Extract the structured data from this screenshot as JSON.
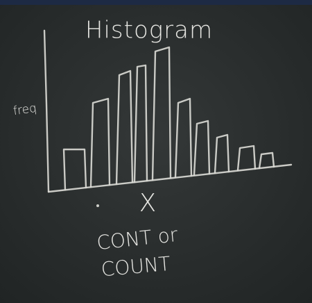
{
  "board": {
    "title": "Histogram",
    "y_label": "freq",
    "x_label": "X",
    "note": [
      "CONT or",
      "COUNT"
    ]
  }
}
